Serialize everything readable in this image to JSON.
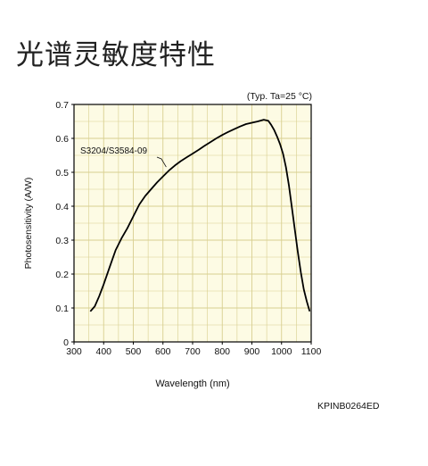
{
  "heading": "光谱灵敏度特性",
  "code": "KPINB0264ED",
  "colors": {
    "plot_background": "#fdfbe4",
    "grid": "#d8cf8f",
    "frame": "#000000",
    "curve": "#000000"
  },
  "chart_data": {
    "type": "line",
    "title": "",
    "condition": "(Typ. Ta=25 °C)",
    "xlabel": "Wavelength (nm)",
    "ylabel": "Photosensitivity (A/W)",
    "xlim": [
      300,
      1100
    ],
    "ylim": [
      0,
      0.7
    ],
    "x_ticks": [
      300,
      400,
      500,
      600,
      700,
      800,
      900,
      1000,
      1100
    ],
    "y_ticks": [
      0,
      0.1,
      0.2,
      0.3,
      0.4,
      0.5,
      0.6,
      0.7
    ],
    "y_tick_labels": [
      "0",
      "0.1",
      "0.2",
      "0.3",
      "0.4",
      "0.5",
      "0.6",
      "0.7"
    ],
    "grid": true,
    "annotation": {
      "text": "S3204/S3584-09",
      "points_to_x": 620
    },
    "series": [
      {
        "name": "S3204/S3584-09",
        "x": [
          355,
          370,
          385,
          400,
          420,
          440,
          460,
          480,
          500,
          520,
          540,
          560,
          580,
          600,
          620,
          640,
          660,
          680,
          700,
          720,
          740,
          760,
          780,
          800,
          820,
          840,
          860,
          880,
          900,
          920,
          940,
          955,
          965,
          975,
          985,
          995,
          1005,
          1015,
          1025,
          1035,
          1045,
          1055,
          1065,
          1075,
          1085,
          1095
        ],
        "y": [
          0.09,
          0.105,
          0.135,
          0.17,
          0.22,
          0.27,
          0.305,
          0.335,
          0.37,
          0.405,
          0.43,
          0.45,
          0.47,
          0.488,
          0.505,
          0.52,
          0.533,
          0.544,
          0.555,
          0.566,
          0.578,
          0.589,
          0.6,
          0.61,
          0.619,
          0.627,
          0.635,
          0.642,
          0.646,
          0.65,
          0.655,
          0.652,
          0.64,
          0.625,
          0.605,
          0.583,
          0.555,
          0.515,
          0.46,
          0.395,
          0.33,
          0.265,
          0.205,
          0.155,
          0.12,
          0.09
        ]
      }
    ]
  }
}
